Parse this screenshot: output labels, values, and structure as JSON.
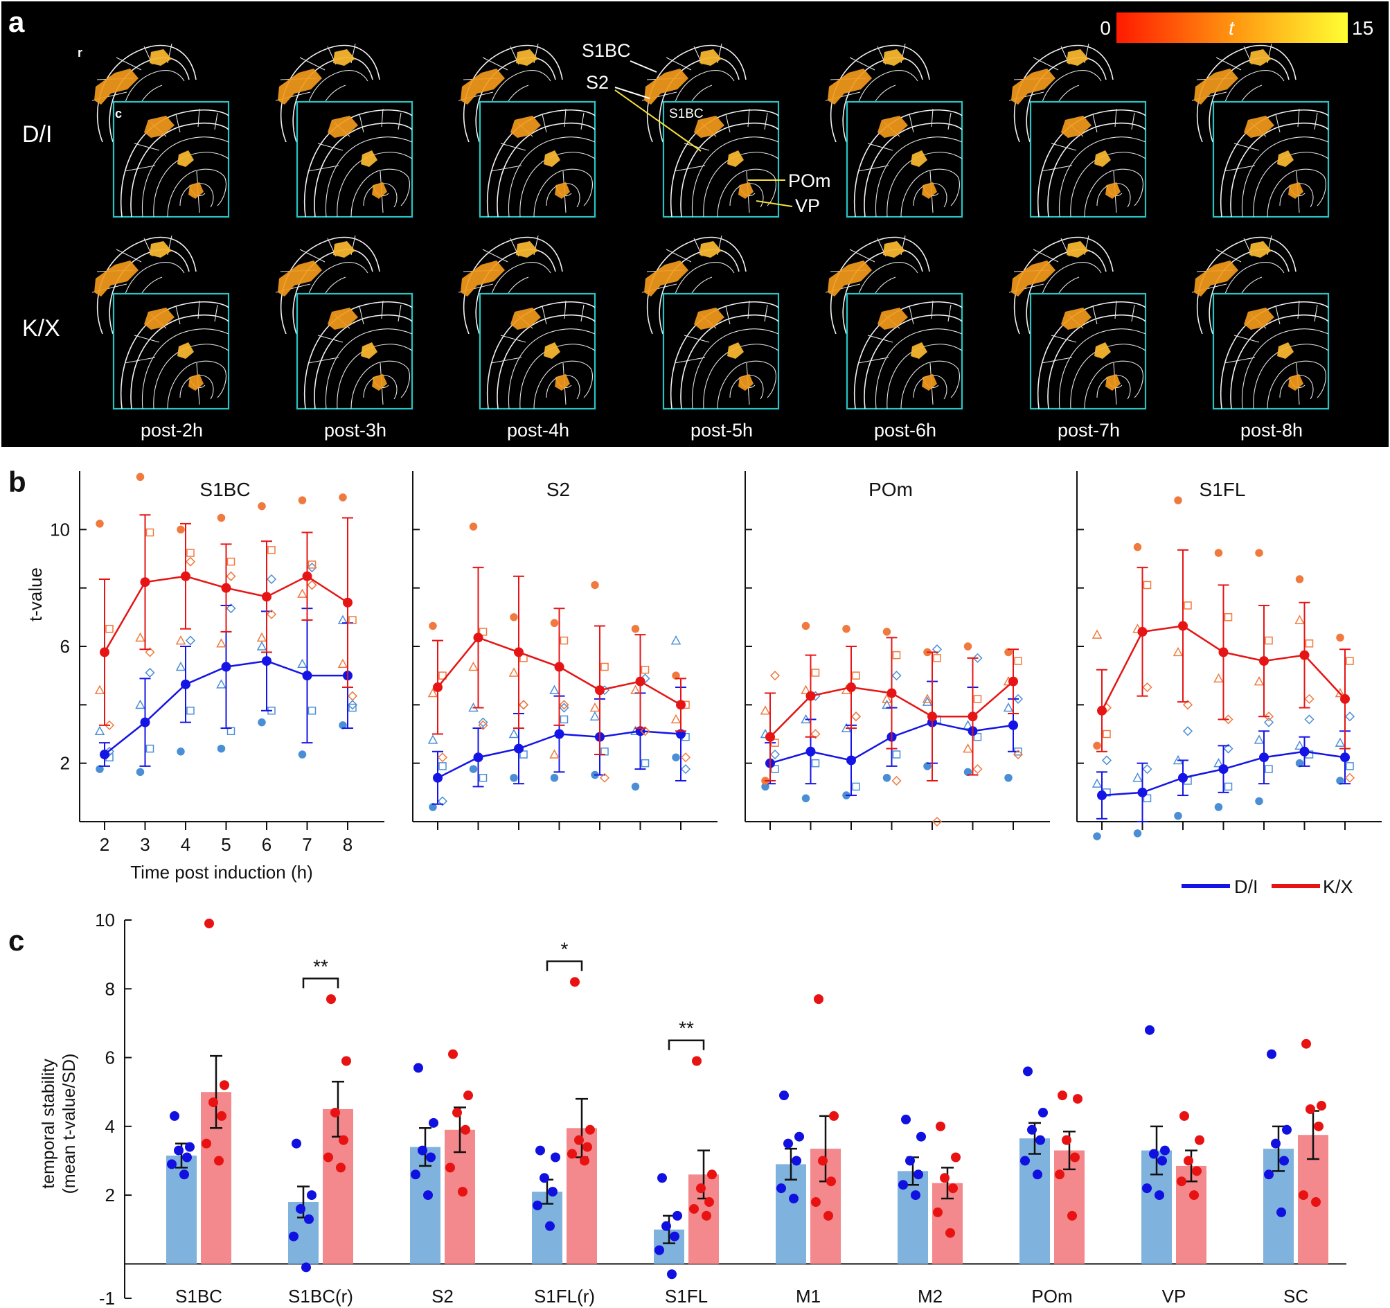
{
  "figure": {
    "panel_labels": [
      "a",
      "b",
      "c"
    ],
    "legend": {
      "dl_label": "D/I",
      "kx_label": "K/X",
      "dl_color": "#1414e6",
      "kx_color": "#e61414"
    }
  },
  "panel_a": {
    "colorbar": {
      "min_label": "0",
      "mid_label": "t",
      "max_label": "15",
      "gradient_start": "#ff1a00",
      "gradient_end": "#ffff33"
    },
    "row_labels": [
      "D/I",
      "K/X"
    ],
    "orientation_labels": {
      "rostral": "r",
      "caudal": "c"
    },
    "time_labels": [
      "post-2h",
      "post-3h",
      "post-4h",
      "post-5h",
      "post-6h",
      "post-7h",
      "post-8h"
    ],
    "annotations": {
      "s1bc_outer": "S1BC",
      "s2": "S2",
      "s1bc_inset": "S1BC",
      "pom": "POm",
      "vp": "VP"
    },
    "frame_color": "#27c4c4",
    "activation_color": "#f39a1c"
  },
  "chart_data": [
    {
      "type": "line",
      "title": "S1BC",
      "xlabel": "Time post induction (h)",
      "ylabel": "t-value",
      "x": [
        2,
        3,
        4,
        5,
        6,
        7,
        8
      ],
      "x_tick_labels": [
        "2",
        "3",
        "4",
        "5",
        "6",
        "7",
        "8"
      ],
      "y_ticks": [
        2,
        6,
        10
      ],
      "y_tick_labels": [
        "2",
        "6",
        "10"
      ],
      "ylim": [
        0,
        12
      ],
      "series": [
        {
          "name": "D/I",
          "mean": [
            2.3,
            3.4,
            4.7,
            5.3,
            5.5,
            5.0,
            5.0
          ],
          "err": [
            0.4,
            1.5,
            1.3,
            2.1,
            1.7,
            2.3,
            1.8
          ],
          "points": [
            [
              1.8,
              2.2,
              3.1,
              2.4
            ],
            [
              1.7,
              2.5,
              4.0,
              5.1
            ],
            [
              2.4,
              3.8,
              5.3,
              6.2
            ],
            [
              2.5,
              3.1,
              4.7,
              7.3
            ],
            [
              3.4,
              3.8,
              6.0,
              8.3
            ],
            [
              2.3,
              3.8,
              5.4,
              8.7
            ],
            [
              3.3,
              3.9,
              6.9,
              4.0
            ]
          ]
        },
        {
          "name": "K/X",
          "mean": [
            5.8,
            8.2,
            8.4,
            8.0,
            7.7,
            8.4,
            7.5
          ],
          "err": [
            2.5,
            2.3,
            1.8,
            1.5,
            1.9,
            1.5,
            2.9
          ],
          "points": [
            [
              10.2,
              6.6,
              4.5,
              3.3
            ],
            [
              11.8,
              9.9,
              6.3,
              5.8
            ],
            [
              10.0,
              9.2,
              6.2,
              8.9
            ],
            [
              10.4,
              8.9,
              6.1,
              8.4
            ],
            [
              10.8,
              9.3,
              6.3,
              7.1
            ],
            [
              11.0,
              8.8,
              7.8,
              8.1
            ],
            [
              11.1,
              6.9,
              5.4,
              4.3
            ]
          ]
        }
      ]
    },
    {
      "type": "line",
      "title": "S2",
      "x": [
        2,
        3,
        4,
        5,
        6,
        7,
        8
      ],
      "ylim": [
        0,
        12
      ],
      "series": [
        {
          "name": "D/I",
          "mean": [
            1.5,
            2.2,
            2.5,
            3.0,
            2.9,
            3.1,
            3.0
          ],
          "err": [
            0.9,
            1.0,
            1.2,
            1.3,
            1.3,
            1.3,
            1.6
          ],
          "points": [
            [
              0.5,
              1.9,
              2.8,
              0.7
            ],
            [
              1.8,
              1.5,
              3.9,
              3.4
            ],
            [
              1.5,
              2.3,
              3.0,
              4.0
            ],
            [
              1.5,
              3.5,
              4.5,
              3.9
            ],
            [
              1.6,
              2.4,
              3.6,
              4.5
            ],
            [
              1.2,
              2.0,
              3.1,
              4.9
            ],
            [
              2.2,
              2.9,
              6.2,
              1.8
            ]
          ]
        },
        {
          "name": "K/X",
          "mean": [
            4.6,
            6.3,
            5.8,
            5.3,
            4.5,
            4.8,
            4.0
          ],
          "err": [
            1.6,
            2.4,
            2.6,
            2.0,
            2.2,
            1.6,
            0.9
          ],
          "points": [
            [
              6.7,
              5.0,
              4.4,
              2.2
            ],
            [
              10.1,
              6.5,
              5.3,
              3.3
            ],
            [
              7.0,
              5.6,
              5.1,
              4.0
            ],
            [
              6.8,
              6.2,
              2.3,
              4.0
            ],
            [
              8.1,
              5.3,
              3.9,
              1.5
            ],
            [
              6.6,
              5.2,
              4.5,
              3.1
            ],
            [
              5.0,
              4.0,
              3.5,
              2.2
            ]
          ]
        }
      ]
    },
    {
      "type": "line",
      "title": "POm",
      "x": [
        2,
        3,
        4,
        5,
        6,
        7,
        8
      ],
      "ylim": [
        0,
        12
      ],
      "series": [
        {
          "name": "D/I",
          "mean": [
            2.0,
            2.4,
            2.1,
            2.9,
            3.4,
            3.1,
            3.3
          ],
          "err": [
            0.7,
            1.1,
            1.2,
            1.0,
            1.4,
            1.5,
            0.9
          ],
          "points": [
            [
              1.2,
              1.8,
              3.0,
              2.3
            ],
            [
              0.8,
              2.0,
              3.5,
              4.3
            ],
            [
              0.9,
              1.2,
              3.2,
              3.6
            ],
            [
              1.5,
              2.3,
              4.0,
              5.0
            ],
            [
              1.9,
              3.5,
              4.1,
              5.9
            ],
            [
              1.7,
              2.9,
              3.3,
              5.6
            ],
            [
              1.5,
              2.4,
              3.9,
              4.2
            ]
          ]
        },
        {
          "name": "K/X",
          "mean": [
            2.9,
            4.3,
            4.6,
            4.4,
            3.6,
            3.6,
            4.8
          ],
          "err": [
            1.5,
            1.4,
            1.4,
            1.9,
            2.2,
            2.0,
            1.1
          ],
          "points": [
            [
              1.4,
              2.7,
              3.8,
              5.0
            ],
            [
              6.7,
              5.1,
              4.5,
              3.0
            ],
            [
              6.6,
              5.0,
              4.5,
              3.6
            ],
            [
              6.5,
              5.7,
              4.2,
              1.4
            ],
            [
              5.8,
              5.6,
              4.2,
              0.0
            ],
            [
              6.0,
              4.2,
              2.5,
              1.8
            ],
            [
              5.8,
              5.5,
              4.8,
              2.3
            ]
          ]
        }
      ]
    },
    {
      "type": "line",
      "title": "S1FL",
      "x": [
        2,
        3,
        4,
        5,
        6,
        7,
        8
      ],
      "ylim": [
        0,
        12
      ],
      "series": [
        {
          "name": "D/I",
          "mean": [
            0.9,
            1.0,
            1.5,
            1.8,
            2.2,
            2.4,
            2.2
          ],
          "err": [
            0.8,
            1.0,
            0.6,
            0.8,
            0.9,
            0.5,
            0.9
          ],
          "points": [
            [
              -0.5,
              1.0,
              1.3,
              2.1
            ],
            [
              -0.4,
              0.8,
              1.5,
              1.8
            ],
            [
              0.2,
              1.4,
              2.1,
              3.1
            ],
            [
              0.5,
              1.2,
              2.0,
              2.5
            ],
            [
              0.7,
              1.8,
              2.8,
              3.4
            ],
            [
              2.0,
              2.3,
              2.6,
              3.5
            ],
            [
              1.4,
              1.9,
              2.7,
              3.6
            ]
          ]
        },
        {
          "name": "K/X",
          "mean": [
            3.8,
            6.5,
            6.7,
            5.8,
            5.5,
            5.7,
            4.2
          ],
          "err": [
            1.4,
            2.2,
            2.6,
            2.3,
            1.9,
            1.8,
            1.7
          ],
          "points": [
            [
              2.6,
              3.0,
              6.4,
              3.9
            ],
            [
              9.4,
              8.1,
              6.6,
              4.6
            ],
            [
              11.0,
              7.4,
              5.8,
              4.0
            ],
            [
              9.2,
              7.0,
              4.9,
              3.5
            ],
            [
              9.2,
              6.2,
              4.8,
              3.6
            ],
            [
              8.3,
              6.1,
              6.9,
              4.2
            ],
            [
              6.3,
              5.5,
              4.4,
              1.5
            ]
          ]
        }
      ]
    },
    {
      "type": "bar",
      "ylabel_line1": "temporal stability",
      "ylabel_line2": "(mean t-value/SD)",
      "categories": [
        "S1BC",
        "S1BC(r)",
        "S2",
        "S1FL(r)",
        "S1FL",
        "M1",
        "M2",
        "POm",
        "VP",
        "SC"
      ],
      "y_ticks": [
        -1,
        2,
        4,
        6,
        8,
        10
      ],
      "y_tick_labels": [
        "-1",
        "2",
        "4",
        "6",
        "8",
        "10"
      ],
      "ylim": [
        -1,
        10
      ],
      "series": [
        {
          "name": "D/I",
          "bar_color": "#7fb2dd",
          "dot_color": "#1010e0",
          "values": [
            3.15,
            1.8,
            3.4,
            2.1,
            1.0,
            2.9,
            2.7,
            3.65,
            3.3,
            3.35
          ],
          "err": [
            0.35,
            0.45,
            0.55,
            0.35,
            0.4,
            0.45,
            0.4,
            0.45,
            0.7,
            0.65
          ],
          "points": [
            [
              4.3,
              3.4,
              3.3,
              3.1,
              2.9,
              2.6
            ],
            [
              3.5,
              2.0,
              1.6,
              1.3,
              0.8,
              -0.1
            ],
            [
              5.7,
              4.1,
              3.3,
              3.1,
              2.6,
              2.0
            ],
            [
              3.3,
              3.1,
              2.5,
              2.1,
              1.7,
              1.1
            ],
            [
              2.5,
              1.4,
              1.1,
              0.8,
              0.4,
              -0.3
            ],
            [
              4.9,
              3.7,
              3.5,
              3.0,
              2.2,
              1.9
            ],
            [
              4.2,
              3.7,
              3.0,
              2.6,
              2.3,
              2.0
            ],
            [
              5.6,
              4.4,
              3.9,
              3.6,
              3.0,
              2.6
            ],
            [
              6.8,
              3.3,
              3.2,
              3.0,
              2.2,
              2.0
            ],
            [
              6.1,
              3.9,
              3.5,
              3.0,
              2.6,
              1.5
            ]
          ]
        },
        {
          "name": "K/X",
          "bar_color": "#f3898c",
          "dot_color": "#e81212",
          "values": [
            5.0,
            4.5,
            3.9,
            3.95,
            2.6,
            3.35,
            2.35,
            3.3,
            2.85,
            3.75
          ],
          "err": [
            1.05,
            0.8,
            0.65,
            0.85,
            0.7,
            0.95,
            0.45,
            0.55,
            0.45,
            0.7
          ],
          "points": [
            [
              9.9,
              5.2,
              4.7,
              4.3,
              3.5,
              3.0
            ],
            [
              7.7,
              5.9,
              4.4,
              3.6,
              3.1,
              2.8
            ],
            [
              6.1,
              4.9,
              4.4,
              3.9,
              2.8,
              2.1
            ],
            [
              8.2,
              3.9,
              3.6,
              3.4,
              3.2,
              3.0
            ],
            [
              5.9,
              2.6,
              2.2,
              1.8,
              1.6,
              1.4
            ],
            [
              7.7,
              4.3,
              3.0,
              2.4,
              1.8,
              1.4
            ],
            [
              4.0,
              3.1,
              2.5,
              2.2,
              1.5,
              0.9
            ],
            [
              4.9,
              4.8,
              3.6,
              3.1,
              2.6,
              1.4
            ],
            [
              4.3,
              3.6,
              3.0,
              2.7,
              2.4,
              2.0
            ],
            [
              6.4,
              4.6,
              4.5,
              4.0,
              2.0,
              1.8
            ]
          ]
        }
      ],
      "significance": [
        {
          "category_index": 1,
          "label": "**"
        },
        {
          "category_index": 3,
          "label": "*"
        },
        {
          "category_index": 4,
          "label": "**"
        }
      ]
    }
  ]
}
